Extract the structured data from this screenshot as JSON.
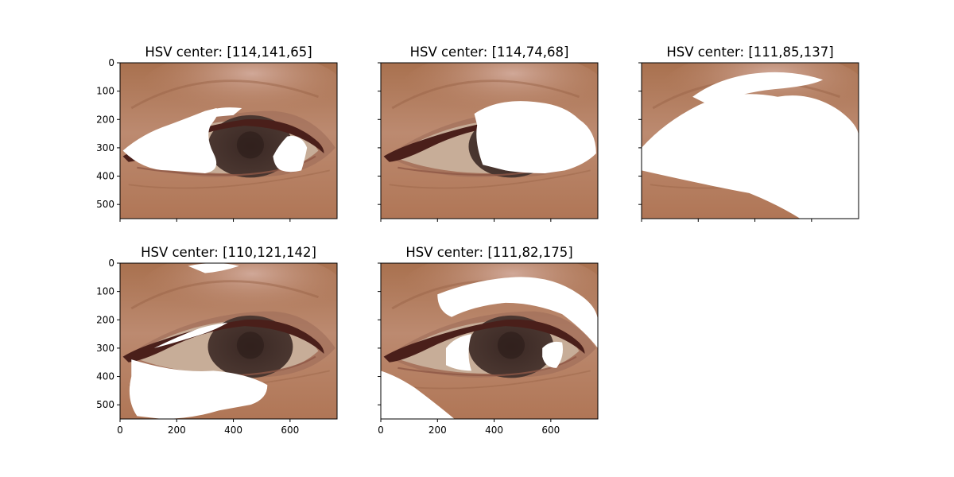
{
  "figure": {
    "panels": [
      {
        "title": "HSV center: [114,141,65]",
        "show_y_ticklabels": true,
        "show_x_ticklabels": false,
        "mask": "a"
      },
      {
        "title": "HSV center: [114,74,68]",
        "show_y_ticklabels": false,
        "show_x_ticklabels": false,
        "mask": "b"
      },
      {
        "title": "HSV center: [111,85,137]",
        "show_y_ticklabels": false,
        "show_x_ticklabels": false,
        "mask": "c"
      },
      {
        "title": "HSV center: [110,121,142]",
        "show_y_ticklabels": true,
        "show_x_ticklabels": true,
        "mask": "d"
      },
      {
        "title": "HSV center: [111,82,175]",
        "show_y_ticklabels": false,
        "show_x_ticklabels": true,
        "mask": "e"
      }
    ],
    "x_ticks": [
      0,
      200,
      400,
      600
    ],
    "y_ticks": [
      0,
      100,
      200,
      300,
      400,
      500
    ],
    "x_range": [
      0,
      766
    ],
    "y_range": [
      0,
      550
    ],
    "colors": {
      "skin": "#b07a5c",
      "skin_light": "#c89a80",
      "lid": "#c69c8c",
      "iris": "#3c2a26",
      "liner": "#4a1f1a",
      "sclera": "#c7ad98",
      "mask": "#ffffff"
    }
  }
}
